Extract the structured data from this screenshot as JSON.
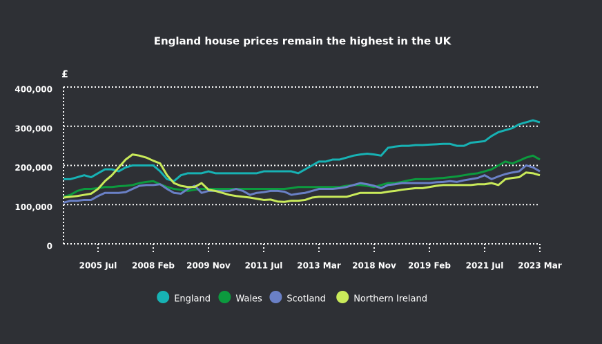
{
  "chart_data": {
    "type": "line",
    "title": "England house prices remain the highest in the UK",
    "y_label": "£",
    "categories": [
      null,
      null,
      null,
      null,
      null,
      "2005 Jul",
      null,
      null,
      null,
      null,
      null,
      null,
      null,
      "2008 Feb",
      null,
      null,
      null,
      null,
      null,
      null,
      null,
      "2009 Nov",
      null,
      null,
      null,
      null,
      null,
      null,
      null,
      "2011 Jul",
      null,
      null,
      null,
      null,
      null,
      null,
      null,
      "2013 Mar",
      null,
      null,
      null,
      null,
      null,
      null,
      null,
      "2018 Nov",
      null,
      null,
      null,
      null,
      null,
      null,
      null,
      "2019 Feb",
      null,
      null,
      null,
      null,
      null,
      null,
      null,
      "2021 Jul",
      null,
      null,
      null,
      null,
      null,
      null,
      null,
      "2023 Mar"
    ],
    "ylim": [
      0,
      400000
    ],
    "yticks": [
      0,
      {
        "value": 100000,
        "label": "100,000"
      },
      {
        "value": 200000,
        "label": "200,000"
      },
      {
        "value": 300000,
        "label": "300,000"
      },
      {
        "value": 400000,
        "label": "400,000"
      }
    ],
    "grid": true,
    "legend": "bottom",
    "series": [
      {
        "name": "England",
        "color": "#17b2b4",
        "values": [
          165000,
          165000,
          170000,
          175000,
          170000,
          180000,
          190000,
          190000,
          185000,
          195000,
          200000,
          200000,
          200000,
          200000,
          185000,
          165000,
          160000,
          175000,
          180000,
          180000,
          180000,
          185000,
          180000,
          180000,
          180000,
          180000,
          180000,
          180000,
          180000,
          185000,
          185000,
          185000,
          185000,
          185000,
          180000,
          190000,
          200000,
          210000,
          210000,
          215000,
          215000,
          220000,
          225000,
          228000,
          230000,
          228000,
          225000,
          245000,
          248000,
          250000,
          250000,
          252000,
          252000,
          253000,
          254000,
          255000,
          255000,
          250000,
          250000,
          258000,
          260000,
          262000,
          275000,
          285000,
          290000,
          295000,
          305000,
          310000,
          315000,
          310000
        ]
      },
      {
        "name": "Wales",
        "color": "#0c9a3e",
        "values": [
          120000,
          125000,
          135000,
          140000,
          140000,
          142000,
          145000,
          145000,
          147000,
          148000,
          150000,
          155000,
          158000,
          160000,
          152000,
          145000,
          140000,
          138000,
          135000,
          138000,
          140000,
          140000,
          140000,
          140000,
          140000,
          140000,
          140000,
          140000,
          140000,
          140000,
          140000,
          140000,
          140000,
          142000,
          145000,
          145000,
          145000,
          145000,
          145000,
          145000,
          145000,
          148000,
          150000,
          150000,
          148000,
          145000,
          150000,
          155000,
          155000,
          158000,
          162000,
          165000,
          165000,
          165000,
          167000,
          168000,
          170000,
          172000,
          175000,
          178000,
          180000,
          185000,
          190000,
          200000,
          210000,
          205000,
          212000,
          220000,
          225000,
          215000
        ]
      },
      {
        "name": "Scotland",
        "color": "#6a80c6",
        "values": [
          105000,
          110000,
          110000,
          112000,
          112000,
          122000,
          130000,
          130000,
          130000,
          132000,
          140000,
          148000,
          150000,
          150000,
          152000,
          140000,
          130000,
          128000,
          140000,
          148000,
          130000,
          135000,
          135000,
          135000,
          135000,
          140000,
          135000,
          125000,
          130000,
          132000,
          135000,
          135000,
          133000,
          125000,
          128000,
          130000,
          135000,
          140000,
          140000,
          140000,
          142000,
          145000,
          150000,
          155000,
          152000,
          148000,
          142000,
          150000,
          152000,
          155000,
          155000,
          155000,
          155000,
          155000,
          157000,
          158000,
          160000,
          158000,
          162000,
          165000,
          168000,
          175000,
          165000,
          172000,
          178000,
          182000,
          185000,
          200000,
          195000,
          185000
        ]
      },
      {
        "name": "Northern Ireland",
        "color": "#c9ea5a",
        "values": [
          118000,
          120000,
          122000,
          125000,
          128000,
          140000,
          160000,
          175000,
          195000,
          215000,
          228000,
          225000,
          220000,
          212000,
          205000,
          175000,
          155000,
          148000,
          145000,
          145000,
          155000,
          138000,
          135000,
          130000,
          125000,
          122000,
          120000,
          118000,
          115000,
          112000,
          113000,
          108000,
          107000,
          110000,
          110000,
          112000,
          118000,
          120000,
          120000,
          120000,
          120000,
          120000,
          125000,
          130000,
          130000,
          130000,
          130000,
          133000,
          135000,
          138000,
          140000,
          142000,
          142000,
          145000,
          148000,
          150000,
          150000,
          150000,
          150000,
          150000,
          152000,
          152000,
          155000,
          150000,
          165000,
          168000,
          170000,
          182000,
          180000,
          175000
        ]
      }
    ]
  }
}
